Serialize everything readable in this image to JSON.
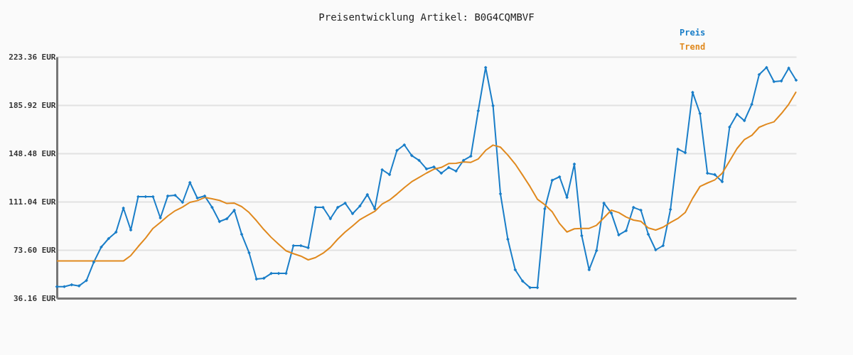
{
  "chart_data": {
    "type": "line",
    "title": "Preisentwicklung Artikel: B0G4CQMBVF",
    "categories": [
      null,
      null,
      null,
      null,
      null,
      null,
      null,
      null,
      null,
      null,
      null,
      null,
      null,
      null,
      null,
      null,
      null,
      null,
      null,
      null,
      null,
      null,
      null,
      null,
      null,
      null,
      null,
      null,
      null,
      null,
      null,
      null,
      null,
      null,
      null,
      null,
      null,
      null,
      null,
      null,
      null,
      null,
      null,
      null,
      null,
      null,
      null,
      null,
      null,
      null,
      null,
      null,
      null,
      null,
      null,
      null,
      null,
      null,
      null,
      null,
      null,
      null,
      null,
      null,
      null,
      null,
      null,
      null,
      null,
      null,
      null,
      null,
      null,
      null,
      null,
      null,
      null,
      null,
      null,
      null,
      null,
      null,
      null,
      null,
      null,
      null,
      null,
      null,
      null,
      null,
      null,
      null,
      null,
      null,
      null,
      null,
      null,
      null,
      null,
      null,
      null
    ],
    "series": [
      {
        "name": "Preis",
        "color": "#1a7ec8",
        "marker": "diamond",
        "values": [
          45.1,
          45.1,
          46.6,
          45.7,
          49.9,
          64.2,
          75.8,
          82.4,
          87.4,
          106.1,
          89.0,
          114.9,
          114.9,
          114.9,
          98.4,
          115.4,
          116.0,
          110.5,
          125.9,
          113.8,
          115.4,
          106.6,
          95.6,
          97.8,
          104.4,
          85.7,
          71.4,
          51.0,
          51.6,
          55.4,
          55.4,
          55.4,
          76.9,
          76.9,
          75.3,
          106.6,
          106.6,
          97.8,
          106.6,
          109.9,
          101.7,
          107.7,
          116.5,
          105.5,
          135.8,
          132.0,
          150.7,
          155.1,
          146.8,
          143.0,
          136.4,
          138.0,
          133.1,
          137.5,
          134.7,
          143.0,
          146.3,
          181.5,
          215.1,
          185.4,
          117.1,
          81.9,
          58.2,
          49.4,
          44.4,
          44.4,
          105.5,
          127.6,
          130.3,
          114.3,
          140.2,
          84.6,
          58.2,
          73.1,
          109.9,
          102.2,
          85.2,
          88.5,
          106.6,
          104.4,
          85.7,
          73.6,
          76.9,
          105.0,
          151.8,
          149.0,
          195.8,
          179.3,
          133.1,
          132.0,
          126.5,
          168.9,
          178.8,
          173.8,
          186.5,
          209.6,
          215.1,
          204.1,
          204.6,
          214.6,
          205.2
        ]
      },
      {
        "name": "Trend",
        "color": "#e0891e",
        "values": [
          65.0,
          65.0,
          65.0,
          65.0,
          65.0,
          65.0,
          65.0,
          65.0,
          65.0,
          65.0,
          69.2,
          76.2,
          82.8,
          90.3,
          94.9,
          99.9,
          104.0,
          106.8,
          110.5,
          111.8,
          114.3,
          113.2,
          112.0,
          109.6,
          109.9,
          107.2,
          102.6,
          96.3,
          89.4,
          83.3,
          78.0,
          72.9,
          70.7,
          68.8,
          65.9,
          67.7,
          71.0,
          75.6,
          82.0,
          87.5,
          92.2,
          97.1,
          100.4,
          103.5,
          109.2,
          112.3,
          116.9,
          121.9,
          126.5,
          129.8,
          133.2,
          136.2,
          137.6,
          140.6,
          140.8,
          141.9,
          141.5,
          144.1,
          150.8,
          154.9,
          153.3,
          147.2,
          140.2,
          131.6,
          122.8,
          112.9,
          108.7,
          103.2,
          94.0,
          87.5,
          90.0,
          90.3,
          90.3,
          92.7,
          98.5,
          104.4,
          102.6,
          99.1,
          96.7,
          95.8,
          90.7,
          89.0,
          91.2,
          94.9,
          98.0,
          102.6,
          113.6,
          122.8,
          125.5,
          127.9,
          133.1,
          142.6,
          152.2,
          159.1,
          162.4,
          168.7,
          171.1,
          172.9,
          179.3,
          186.6,
          196.2
        ]
      }
    ],
    "ylim": [
      36.16,
      223.36
    ],
    "yticks": [
      {
        "value": 36.16,
        "label": "36.16 EUR"
      },
      {
        "value": 73.6,
        "label": "73.60 EUR"
      },
      {
        "value": 111.04,
        "label": "111.04 EUR"
      },
      {
        "value": 148.48,
        "label": "148.48 EUR"
      },
      {
        "value": 185.92,
        "label": "185.92 EUR"
      },
      {
        "value": 223.36,
        "label": "223.36 EUR"
      }
    ],
    "grid": "y",
    "tick_labels": "y",
    "legend": "top right",
    "line_style": "solid"
  }
}
